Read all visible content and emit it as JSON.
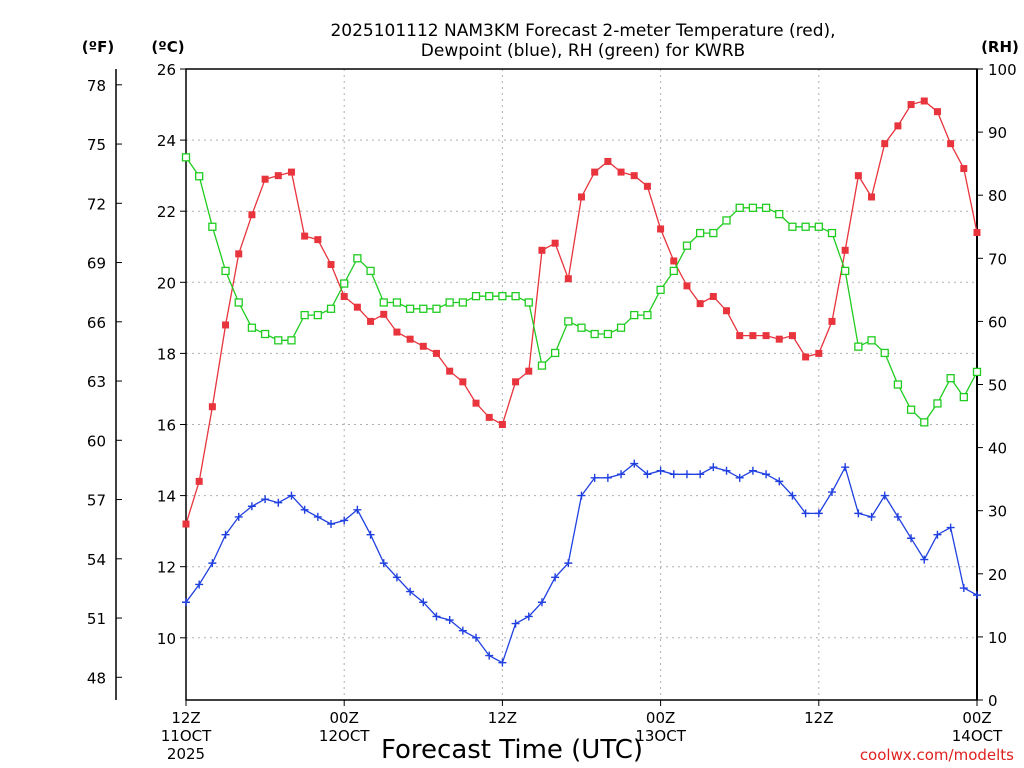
{
  "chart_data": {
    "type": "line",
    "title_lines": [
      "2025101112 NAM3KM Forecast 2-meter Temperature (red),",
      "Dewpoint (blue), RH (green) for KWRB"
    ],
    "xlabel": "Forecast Time (UTC)",
    "credit": "coolwx.com/modelts",
    "units": {
      "fahrenheit": "(ºF)",
      "celsius": "(ºC)",
      "rh": "(RH)"
    },
    "x_range_hours": [
      0,
      60
    ],
    "x_ticks": [
      {
        "hour": 0,
        "lines": [
          "12Z",
          "11OCT",
          "2025"
        ]
      },
      {
        "hour": 12,
        "lines": [
          "00Z",
          "12OCT"
        ]
      },
      {
        "hour": 24,
        "lines": [
          "12Z"
        ]
      },
      {
        "hour": 36,
        "lines": [
          "00Z",
          "13OCT"
        ]
      },
      {
        "hour": 48,
        "lines": [
          "12Z"
        ]
      },
      {
        "hour": 60,
        "lines": [
          "00Z",
          "14OCT"
        ]
      }
    ],
    "celsius_axis": {
      "range": [
        8.25,
        26
      ],
      "ticks": [
        10,
        12,
        14,
        16,
        18,
        20,
        22,
        24,
        26
      ]
    },
    "fahrenheit_ticks": [
      48,
      51,
      54,
      57,
      60,
      63,
      66,
      69,
      72,
      75,
      78
    ],
    "rh_axis": {
      "range": [
        0,
        100
      ],
      "ticks": [
        0,
        10,
        20,
        30,
        40,
        50,
        60,
        70,
        80,
        90,
        100
      ]
    },
    "series": [
      {
        "name": "Temperature",
        "unit": "C",
        "color": "#e8343c",
        "marker": "filled-square",
        "values": [
          13.2,
          14.4,
          16.5,
          18.8,
          20.8,
          21.9,
          22.9,
          23.0,
          23.1,
          21.3,
          21.2,
          20.5,
          19.6,
          19.3,
          18.9,
          19.1,
          18.6,
          18.4,
          18.2,
          18.0,
          17.5,
          17.2,
          16.6,
          16.2,
          16.0,
          17.2,
          17.5,
          20.9,
          21.1,
          20.1,
          22.4,
          23.1,
          23.4,
          23.1,
          23.0,
          22.7,
          21.5,
          20.6,
          19.9,
          19.4,
          19.6,
          19.2,
          18.5,
          18.5,
          18.5,
          18.4,
          18.5,
          17.9,
          18.0,
          18.9,
          20.9,
          23.0,
          22.4,
          23.9,
          24.4,
          25.0,
          25.1,
          24.8,
          23.9,
          23.2,
          21.4
        ]
      },
      {
        "name": "Dewpoint",
        "unit": "C",
        "color": "#2040e0",
        "marker": "plus",
        "values": [
          11.0,
          11.5,
          12.1,
          12.9,
          13.4,
          13.7,
          13.9,
          13.8,
          14.0,
          13.6,
          13.4,
          13.2,
          13.3,
          13.6,
          12.9,
          12.1,
          11.7,
          11.3,
          11.0,
          10.6,
          10.5,
          10.2,
          10.0,
          9.5,
          9.3,
          10.4,
          10.6,
          11.0,
          11.7,
          12.1,
          14.0,
          14.5,
          14.5,
          14.6,
          14.9,
          14.6,
          14.7,
          14.6,
          14.6,
          14.6,
          14.8,
          14.7,
          14.5,
          14.7,
          14.6,
          14.4,
          14.0,
          13.5,
          13.5,
          14.1,
          14.8,
          13.5,
          13.4,
          14.0,
          13.4,
          12.8,
          12.2,
          12.9,
          13.1,
          11.4,
          11.2
        ]
      },
      {
        "name": "RH",
        "unit": "%",
        "color": "#20cc20",
        "marker": "open-square",
        "values": [
          86,
          83,
          75,
          68,
          63,
          59,
          58,
          57,
          57,
          61,
          61,
          62,
          66,
          70,
          68,
          63,
          63,
          62,
          62,
          62,
          63,
          63,
          64,
          64,
          64,
          64,
          63,
          53,
          55,
          60,
          59,
          58,
          58,
          59,
          61,
          61,
          65,
          68,
          72,
          74,
          74,
          76,
          78,
          78,
          78,
          77,
          75,
          75,
          75,
          74,
          68,
          56,
          57,
          55,
          50,
          46,
          44,
          47,
          51,
          48,
          52
        ]
      }
    ]
  }
}
